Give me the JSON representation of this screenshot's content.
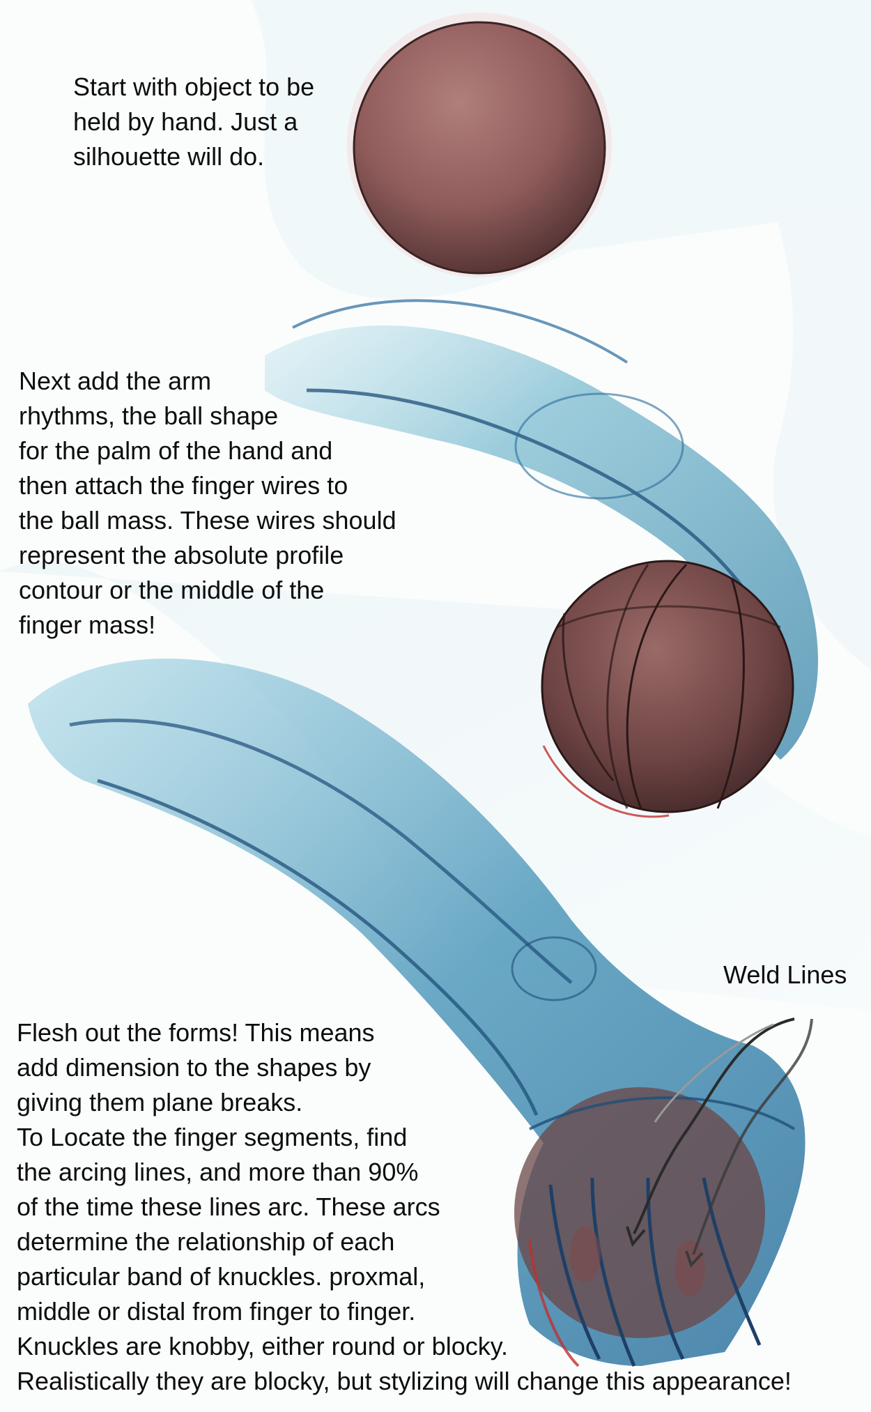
{
  "steps": [
    {
      "lines": [
        "Start with object to be",
        "held by hand.   Just a",
        "silhouette will do."
      ]
    },
    {
      "lines": [
        "Next add the arm",
        "rhythms, the ball shape",
        "for the palm of the hand and",
        "then attach the finger wires to",
        "the ball mass.  These wires should",
        "represent the absolute profile",
        "contour or the middle of the",
        "finger mass!"
      ]
    },
    {
      "lines": [
        "Flesh out the forms!  This means",
        "add dimension to the shapes by",
        "giving them plane breaks.",
        "To Locate the finger segments, find",
        "the arcing lines, and more than 90%",
        "of the time these lines arc.  These arcs",
        "determine the relationship of each",
        "particular band of knuckles. proxmal,",
        "middle or distal from finger to finger.",
        "Knuckles are knobby, either round or blocky.",
        "Realistically they are blocky, but stylizing will change this appearance!"
      ]
    }
  ],
  "callout": {
    "label": "Weld Lines"
  },
  "colors": {
    "ball": "#9c6565",
    "ball_dark": "#4a2b2b",
    "arm_light": "#a7d7e4",
    "arm_mid": "#5fa3bd",
    "arm_dark": "#1f4f7a",
    "pencil_red": "#c0302e",
    "background_wash": "#e9f4f7"
  }
}
